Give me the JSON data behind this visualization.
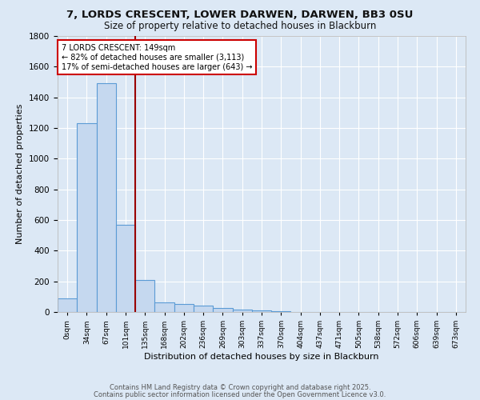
{
  "title_line1": "7, LORDS CRESCENT, LOWER DARWEN, DARWEN, BB3 0SU",
  "title_line2": "Size of property relative to detached houses in Blackburn",
  "xlabel": "Distribution of detached houses by size in Blackburn",
  "ylabel": "Number of detached properties",
  "bin_labels": [
    "0sqm",
    "34sqm",
    "67sqm",
    "101sqm",
    "135sqm",
    "168sqm",
    "202sqm",
    "236sqm",
    "269sqm",
    "303sqm",
    "337sqm",
    "370sqm",
    "404sqm",
    "437sqm",
    "471sqm",
    "505sqm",
    "538sqm",
    "572sqm",
    "606sqm",
    "639sqm",
    "673sqm"
  ],
  "bin_values": [
    90,
    1230,
    1490,
    570,
    210,
    65,
    50,
    40,
    28,
    18,
    8,
    3,
    1,
    0,
    0,
    0,
    0,
    0,
    0,
    0,
    0
  ],
  "bar_width": 1.0,
  "bar_facecolor": "#c5d8ef",
  "bar_edgecolor": "#5b9bd5",
  "bg_color": "#dce8f5",
  "grid_color": "#ffffff",
  "vline_x": 3.5,
  "vline_color": "#990000",
  "annotation_text": "7 LORDS CRESCENT: 149sqm\n← 82% of detached houses are smaller (3,113)\n17% of semi-detached houses are larger (643) →",
  "annotation_box_facecolor": "#ffffff",
  "annotation_box_edgecolor": "#cc0000",
  "ylim": [
    0,
    1800
  ],
  "yticks": [
    0,
    200,
    400,
    600,
    800,
    1000,
    1200,
    1400,
    1600,
    1800
  ],
  "footer_line1": "Contains HM Land Registry data © Crown copyright and database right 2025.",
  "footer_line2": "Contains public sector information licensed under the Open Government Licence v3.0."
}
